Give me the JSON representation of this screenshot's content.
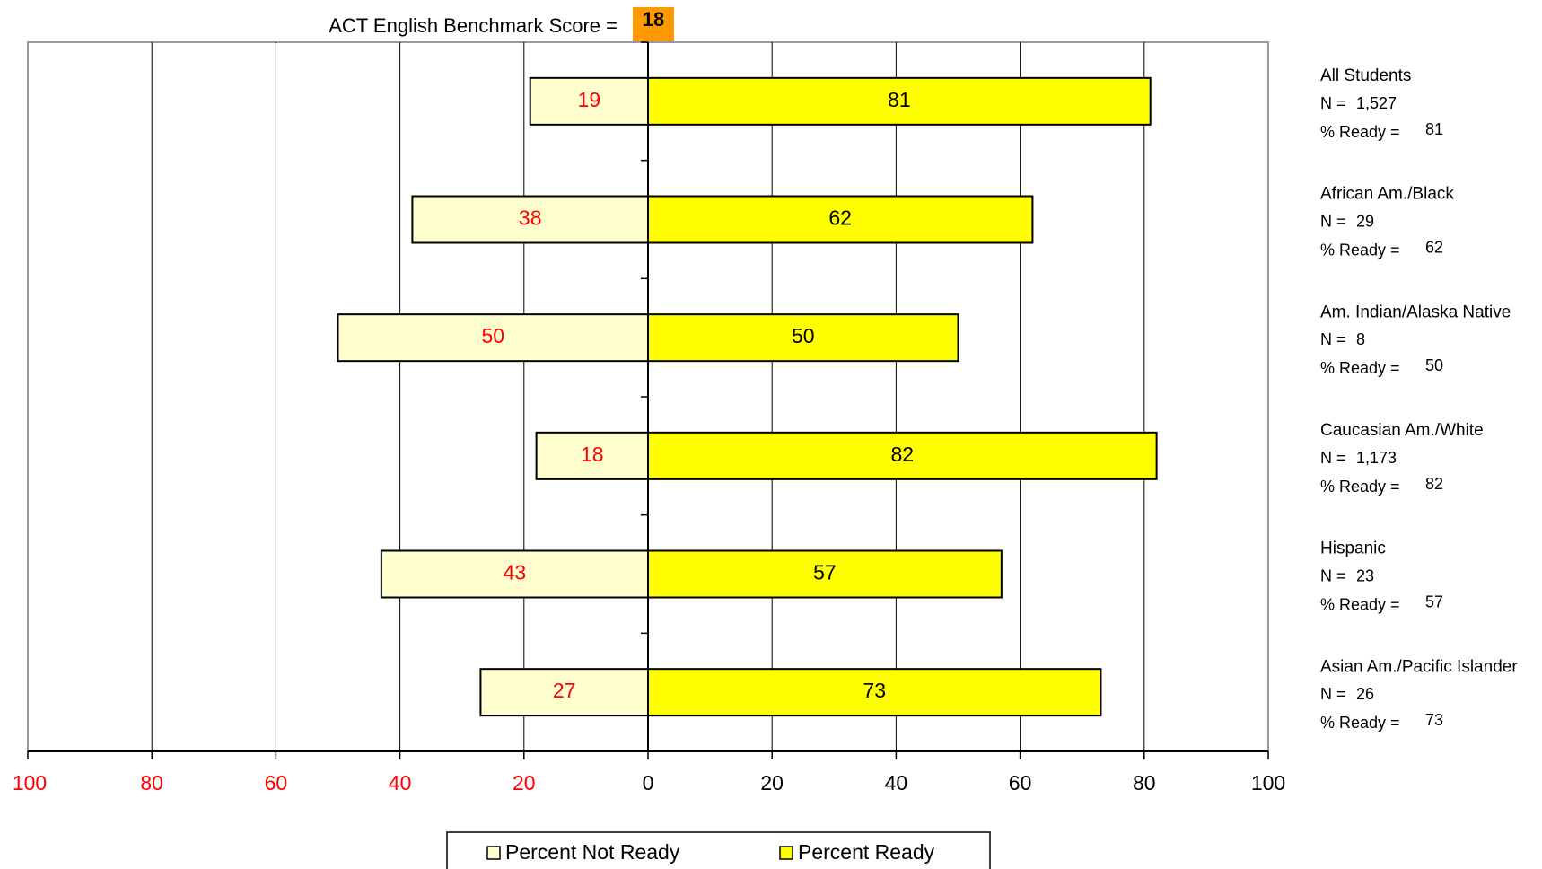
{
  "header": {
    "title": "ACT English Benchmark Score =",
    "benchmark": "18",
    "benchmark_color": "#ff9900"
  },
  "colors": {
    "ready": "#ffff00",
    "not_ready": "#ffffd0",
    "not_ready_text": "#ff0000",
    "ready_text": "#000000",
    "grid": "#000000"
  },
  "chart_data": {
    "type": "bar",
    "orientation": "horizontal-diverging",
    "categories": [
      "All Students",
      "African Am./Black",
      "Am. Indian/Alaska Native",
      "Caucasian Am./White",
      "Hispanic",
      "Asian Am./Pacific Islander"
    ],
    "series": [
      {
        "name": "Percent Not Ready",
        "values": [
          19,
          38,
          50,
          18,
          43,
          27
        ]
      },
      {
        "name": "Percent Ready",
        "values": [
          81,
          62,
          50,
          82,
          57,
          73
        ]
      }
    ],
    "xlim": [
      -100,
      100
    ],
    "x_ticks": [
      {
        "value": -100,
        "label": "100"
      },
      {
        "value": -80,
        "label": "80"
      },
      {
        "value": -60,
        "label": "60"
      },
      {
        "value": -40,
        "label": "40"
      },
      {
        "value": -20,
        "label": "20"
      },
      {
        "value": 0,
        "label": "0"
      },
      {
        "value": 20,
        "label": "20"
      },
      {
        "value": 40,
        "label": "40"
      },
      {
        "value": 60,
        "label": "60"
      },
      {
        "value": 80,
        "label": "80"
      },
      {
        "value": 100,
        "label": "100"
      }
    ],
    "grid": true,
    "legend_position": "bottom-center"
  },
  "groups": [
    {
      "name": "All Students",
      "n_label": "N =",
      "n": "1,527",
      "ready_label": "% Ready =",
      "ready": "81"
    },
    {
      "name": "African Am./Black",
      "n_label": "N =",
      "n": "29",
      "ready_label": "% Ready =",
      "ready": "62"
    },
    {
      "name": "Am. Indian/Alaska Native",
      "n_label": "N =",
      "n": "8",
      "ready_label": "% Ready =",
      "ready": "50"
    },
    {
      "name": "Caucasian Am./White",
      "n_label": "N =",
      "n": "1,173",
      "ready_label": "% Ready =",
      "ready": "82"
    },
    {
      "name": "Hispanic",
      "n_label": "N =",
      "n": "23",
      "ready_label": "% Ready =",
      "ready": "57"
    },
    {
      "name": "Asian Am./Pacific Islander",
      "n_label": "N =",
      "n": "26",
      "ready_label": "% Ready =",
      "ready": "73"
    }
  ],
  "legend": {
    "not_ready_label": "Percent Not Ready",
    "ready_label": "Percent Ready"
  }
}
